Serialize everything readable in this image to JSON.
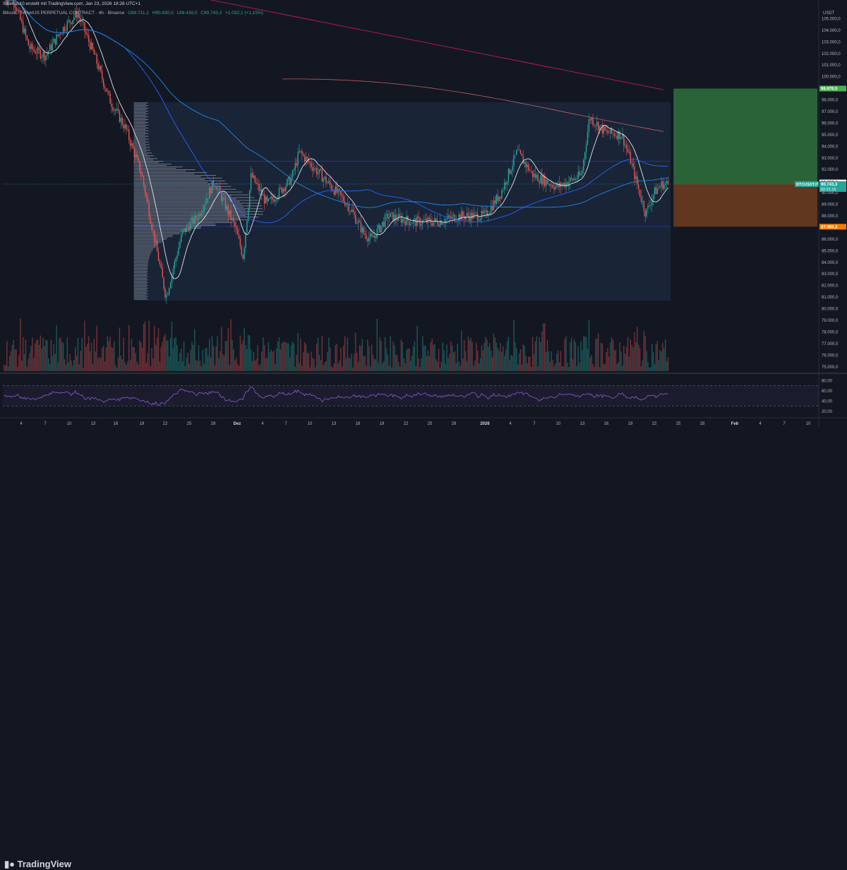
{
  "header": {
    "author_line": "Siberius10 erstellt mit TradingView.com, Jan 23, 2026 18:28 UTC+1",
    "symbol_line": "Bitcoin / TetherUS PERPETUAL CONTRACT · 4h · Binance",
    "ohlc": {
      "open": "O89.711,2",
      "high": "H90.830,0",
      "low": "L89.438,0",
      "close": "C90.743,3",
      "change": "+1.032,1 (+1,15%)"
    }
  },
  "price_axis": {
    "currency": "USDT",
    "ticks": [
      "105.000,0",
      "104.000,0",
      "103.000,0",
      "102.000,0",
      "101.000,0",
      "100.000,0",
      "98.000,0",
      "97.000,0",
      "96.000,0",
      "95.000,0",
      "94.000,0",
      "93.000,0",
      "92.000,0",
      "90.000,0",
      "89.000,0",
      "88.000,0",
      "86.000,0",
      "85.000,0",
      "84.000,0",
      "83.000,0",
      "82.000,0",
      "81.000,0",
      "80.000,0",
      "79.000,0",
      "78.000,0",
      "77.000,0",
      "76.000,0",
      "75.000,0"
    ],
    "labels": {
      "target": "98.976,5",
      "ma_value": "90.883,4",
      "symbol_tag": "BTCUSDT.P",
      "current_price": "90.743,3",
      "countdown": "02:31:16",
      "stop": "87.069,3"
    }
  },
  "rsi_axis": {
    "ticks": [
      "80,00",
      "60,00",
      "40,00",
      "20,00"
    ]
  },
  "time_axis": {
    "ticks": [
      "4",
      "7",
      "10",
      "13",
      "16",
      "19",
      "22",
      "25",
      "28",
      "Dez",
      "4",
      "7",
      "10",
      "13",
      "16",
      "19",
      "22",
      "25",
      "28",
      "2026",
      "4",
      "7",
      "10",
      "13",
      "16",
      "19",
      "22",
      "25",
      "28",
      "Feb",
      "4",
      "7",
      "10"
    ]
  },
  "footer": {
    "brand": "TradingView"
  },
  "colors": {
    "background": "#131722",
    "up": "#26a69a",
    "down": "#ef5350",
    "ma_blue": "#2962ff",
    "ma_red": "#c2185b",
    "rsi": "#7e57c2",
    "profit_zone": "#2e6b3a",
    "loss_zone": "#6b3b1f"
  },
  "chart_data": {
    "type": "candlestick",
    "title": "Bitcoin / TetherUS PERPETUAL CONTRACT · 4h · Binance",
    "ylim": [
      74500,
      106000
    ],
    "close_path": [
      [
        "Nov 3",
        106800
      ],
      [
        "Nov 5",
        102500
      ],
      [
        "Nov 7",
        101800
      ],
      [
        "Nov 9",
        104000
      ],
      [
        "Nov 11",
        105500
      ],
      [
        "Nov 13",
        102000
      ],
      [
        "Nov 15",
        98000
      ],
      [
        "Nov 17",
        95500
      ],
      [
        "Nov 19",
        91500
      ],
      [
        "Nov 21",
        84500
      ],
      [
        "Nov 22",
        81000
      ],
      [
        "Nov 24",
        86500
      ],
      [
        "Nov 26",
        88000
      ],
      [
        "Nov 28",
        91000
      ],
      [
        "Dez 1",
        87000
      ],
      [
        "Dez 2",
        84500
      ],
      [
        "Dez 3",
        91500
      ],
      [
        "Dez 5",
        89000
      ],
      [
        "Dez 8",
        91200
      ],
      [
        "Dez 9",
        93500
      ],
      [
        "Dez 11",
        92000
      ],
      [
        "Dez 13",
        90500
      ],
      [
        "Dez 15",
        89000
      ],
      [
        "Dez 17",
        86500
      ],
      [
        "Dez 18",
        86000
      ],
      [
        "Dez 20",
        88000
      ],
      [
        "Dez 23",
        87500
      ],
      [
        "Dez 26",
        87500
      ],
      [
        "Dez 29",
        88000
      ],
      [
        "Jan 1",
        88000
      ],
      [
        "Jan 3",
        90000
      ],
      [
        "Jan 5",
        93500
      ],
      [
        "Jan 7",
        91500
      ],
      [
        "Jan 10",
        90500
      ],
      [
        "Jan 13",
        91500
      ],
      [
        "Jan 14",
        96500
      ],
      [
        "Jan 16",
        95200
      ],
      [
        "Jan 18",
        95000
      ],
      [
        "Jan 19",
        93000
      ],
      [
        "Jan 20",
        90500
      ],
      [
        "Jan 21",
        88200
      ],
      [
        "Jan 22",
        90000
      ],
      [
        "Jan 23",
        90743
      ]
    ],
    "position_tool": {
      "entry": 90743.3,
      "target": 98976.5,
      "stop": 87069.3
    },
    "rsi_range": [
      20,
      80
    ],
    "rsi_levels": [
      70,
      30
    ]
  }
}
